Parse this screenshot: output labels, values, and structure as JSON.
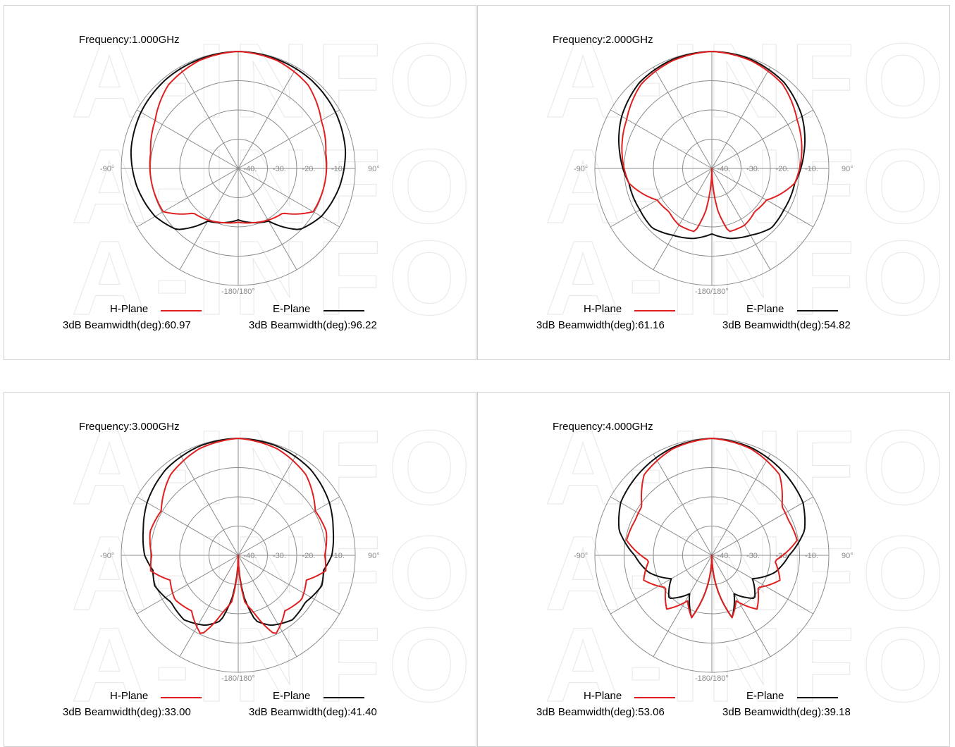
{
  "colors": {
    "h_plane": "#e02020",
    "e_plane": "#101010",
    "grid": "#8c8c8c"
  },
  "watermark_text": "A-INFO",
  "chart_data": [
    {
      "type": "polar",
      "frequency_label": "Frequency:1.000GHz",
      "angle_labels": [
        "-90°",
        "90°",
        "-180/180°"
      ],
      "ring_labels": [
        "-40.",
        "-30.",
        "-20.",
        "-10."
      ],
      "r_range_db": [
        -50,
        0
      ],
      "grid": true,
      "series": [
        {
          "name": "H-Plane",
          "beamwidth_label": "3dB Beamwidth(deg):60.97",
          "angles": [
            0,
            20,
            40,
            60,
            80,
            100,
            120,
            135,
            150,
            165,
            180,
            195,
            210,
            225,
            240,
            260,
            280,
            300,
            320,
            340
          ],
          "gain_db": [
            0,
            -1,
            -3.5,
            -9,
            -12,
            -12.5,
            -13,
            -23,
            -24.5,
            -26,
            -27,
            -26,
            -24.5,
            -23,
            -13,
            -12.5,
            -12,
            -9,
            -3.5,
            -1
          ]
        },
        {
          "name": "E-Plane",
          "beamwidth_label": "3dB Beamwidth(deg):96.22",
          "angles": [
            0,
            20,
            40,
            60,
            80,
            100,
            120,
            135,
            150,
            165,
            180,
            195,
            210,
            225,
            240,
            260,
            280,
            300,
            320,
            340
          ],
          "gain_db": [
            0,
            -0.5,
            -1,
            -2,
            -3.5,
            -6,
            -9,
            -13,
            -24,
            -26,
            -28,
            -26,
            -24,
            -13,
            -9,
            -6,
            -3.5,
            -2,
            -1,
            -0.5
          ]
        }
      ]
    },
    {
      "type": "polar",
      "frequency_label": "Frequency:2.000GHz",
      "angle_labels": [
        "-90°",
        "90°",
        "-180/180°"
      ],
      "ring_labels": [
        "-40.",
        "-30.",
        "-20.",
        "-10."
      ],
      "r_range_db": [
        -50,
        0
      ],
      "grid": true,
      "series": [
        {
          "name": "H-Plane",
          "beamwidth_label": "3dB Beamwidth(deg):61.16",
          "angles": [
            0,
            20,
            40,
            60,
            80,
            100,
            120,
            135,
            150,
            165,
            172,
            180,
            188,
            195,
            210,
            225,
            240,
            260,
            280,
            300,
            320,
            340
          ],
          "gain_db": [
            0,
            -1,
            -3,
            -8,
            -11,
            -14,
            -23,
            -24,
            -22,
            -22,
            -32,
            -50,
            -32,
            -22,
            -22,
            -24,
            -23,
            -14,
            -11,
            -8,
            -3,
            -1
          ]
        },
        {
          "name": "E-Plane",
          "beamwidth_label": "3dB Beamwidth(deg):54.82",
          "angles": [
            0,
            20,
            40,
            60,
            80,
            100,
            120,
            135,
            150,
            165,
            180,
            195,
            210,
            225,
            240,
            260,
            280,
            300,
            320,
            340
          ],
          "gain_db": [
            0,
            -0.5,
            -2,
            -5.5,
            -10,
            -14,
            -14.5,
            -14,
            -17,
            -19,
            -22,
            -19,
            -17,
            -14,
            -14.5,
            -14,
            -10,
            -5.5,
            -2,
            -0.5
          ]
        }
      ]
    },
    {
      "type": "polar",
      "frequency_label": "Frequency:3.000GHz",
      "angle_labels": [
        "-90°",
        "90°",
        "-180/180°"
      ],
      "ring_labels": [
        "-40.",
        "-30.",
        "-20.",
        "-10."
      ],
      "r_range_db": [
        -50,
        0
      ],
      "grid": true,
      "series": [
        {
          "name": "H-Plane",
          "beamwidth_label": "3dB Beamwidth(deg):33.00",
          "angles": [
            0,
            20,
            40,
            60,
            75,
            90,
            100,
            110,
            125,
            140,
            155,
            165,
            172,
            180,
            188,
            195,
            205,
            220,
            235,
            250,
            260,
            270,
            285,
            300,
            320,
            340
          ],
          "gain_db": [
            0,
            -1.5,
            -5,
            -12,
            -11,
            -13,
            -12,
            -19,
            -17,
            -19,
            -12.5,
            -25,
            -30,
            -50,
            -30,
            -25,
            -12.5,
            -19,
            -17,
            -19,
            -12,
            -13,
            -11,
            -12,
            -5,
            -1.5
          ]
        },
        {
          "name": "E-Plane",
          "beamwidth_label": "3dB Beamwidth(deg):41.40",
          "angles": [
            0,
            20,
            40,
            60,
            75,
            90,
            100,
            110,
            125,
            140,
            155,
            165,
            172,
            180,
            188,
            195,
            205,
            220,
            235,
            250,
            260,
            270,
            285,
            300,
            320,
            340
          ],
          "gain_db": [
            0,
            -0.5,
            -2,
            -5,
            -8,
            -10,
            -13,
            -12,
            -15,
            -14,
            -17,
            -21,
            -32,
            -50,
            -32,
            -21,
            -17,
            -14,
            -15,
            -12,
            -13,
            -10,
            -8,
            -5,
            -2,
            -0.5
          ]
        }
      ]
    },
    {
      "type": "polar",
      "frequency_label": "Frequency:4.000GHz",
      "angle_labels": [
        "-90°",
        "90°",
        "-180/180°"
      ],
      "ring_labels": [
        "-40.",
        "-30.",
        "-20.",
        "-10."
      ],
      "r_range_db": [
        -50,
        0
      ],
      "grid": true,
      "series": [
        {
          "name": "H-Plane",
          "beamwidth_label": "3dB Beamwidth(deg):53.06",
          "angles": [
            0,
            20,
            40,
            55,
            65,
            80,
            95,
            110,
            125,
            140,
            152,
            162,
            170,
            180,
            190,
            198,
            208,
            220,
            235,
            250,
            265,
            280,
            295,
            305,
            320,
            340
          ],
          "gain_db": [
            0,
            -1.5,
            -5,
            -13.5,
            -14,
            -13,
            -23,
            -19,
            -26,
            -20,
            -28,
            -22,
            -34,
            -50,
            -34,
            -22,
            -28,
            -20,
            -26,
            -19,
            -23,
            -13,
            -14,
            -13.5,
            -5,
            -1.5
          ]
        },
        {
          "name": "E-Plane",
          "beamwidth_label": "3dB Beamwidth(deg):39.18",
          "angles": [
            0,
            20,
            40,
            60,
            75,
            90,
            105,
            120,
            135,
            150,
            162,
            170,
            180,
            190,
            198,
            210,
            225,
            240,
            255,
            270,
            285,
            300,
            320,
            340
          ],
          "gain_db": [
            0,
            -1,
            -3,
            -5,
            -9,
            -17,
            -22,
            -30,
            -24,
            -31,
            -22,
            -34,
            -50,
            -34,
            -22,
            -31,
            -24,
            -30,
            -22,
            -17,
            -9,
            -5,
            -3,
            -1
          ]
        }
      ]
    }
  ]
}
